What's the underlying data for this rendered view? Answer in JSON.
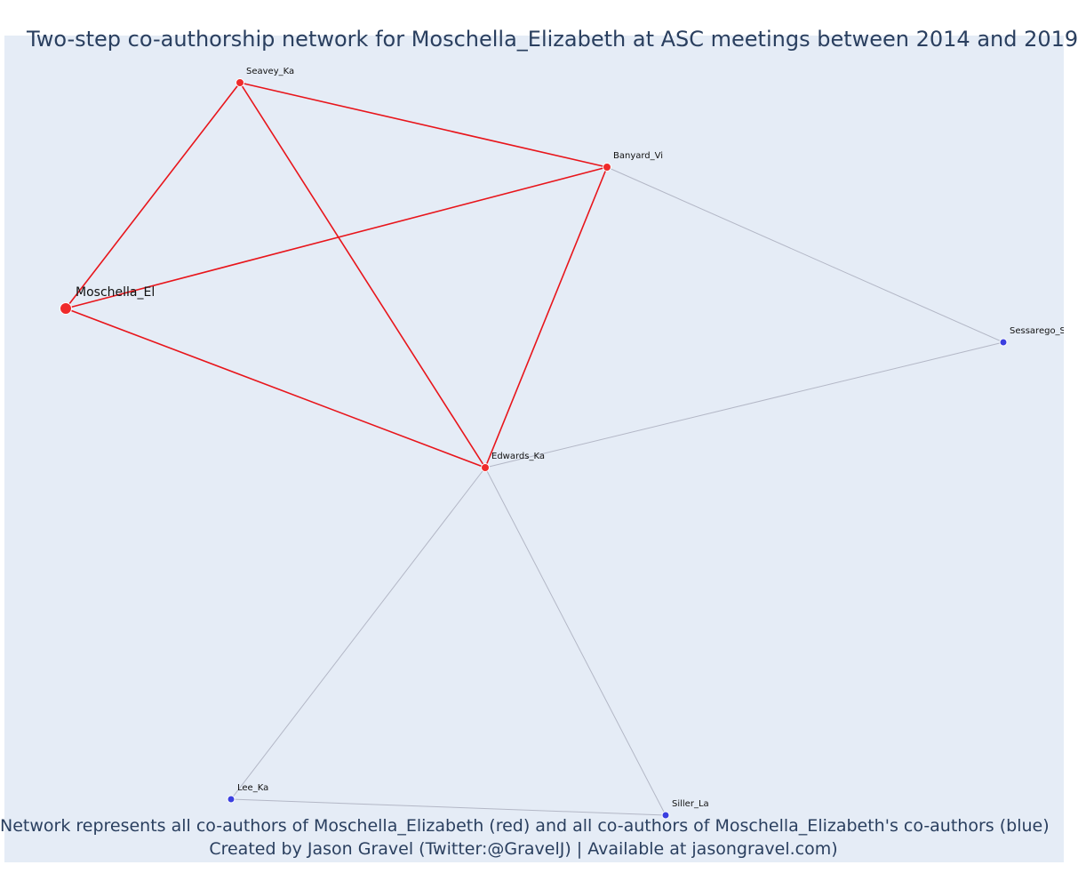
{
  "title": "Two-step co-authorship network for Moschella_Elizabeth at ASC meetings between 2014 and 2019",
  "footnotes": [
    "Network represents all co-authors of Moschella_Elizabeth (red) and all co-authors of Moschella_Elizabeth's co-authors (blue)",
    "Created by Jason Gravel (Twitter:@GravelJ) | Available at jasongravel.com)"
  ],
  "colors": {
    "background": "#e5ecf6",
    "first_step_node": "#ef2b2b",
    "second_step_node": "#3b3fe0",
    "first_step_edge": "#e8151b",
    "second_step_edge": "#b3b7c6",
    "text": "#2a3f5f"
  },
  "nodes": [
    {
      "id": "Moschella_El",
      "label": "Moschella_El",
      "group": "focal"
    },
    {
      "id": "Seavey_Ka",
      "label": "Seavey_Ka",
      "group": "co-author"
    },
    {
      "id": "Banyard_Vi",
      "label": "Banyard_Vi",
      "group": "co-author"
    },
    {
      "id": "Edwards_Ka",
      "label": "Edwards_Ka",
      "group": "co-author"
    },
    {
      "id": "Sessarego_Sa",
      "label": "Sessarego_S",
      "group": "second-step"
    },
    {
      "id": "Lee_Ka",
      "label": "Lee_Ka",
      "group": "second-step"
    },
    {
      "id": "Siller_La",
      "label": "Siller_La",
      "group": "second-step"
    }
  ],
  "edges": [
    {
      "source": "Moschella_El",
      "target": "Seavey_Ka",
      "type": "first-step"
    },
    {
      "source": "Moschella_El",
      "target": "Banyard_Vi",
      "type": "first-step"
    },
    {
      "source": "Moschella_El",
      "target": "Edwards_Ka",
      "type": "first-step"
    },
    {
      "source": "Seavey_Ka",
      "target": "Banyard_Vi",
      "type": "first-step"
    },
    {
      "source": "Seavey_Ka",
      "target": "Edwards_Ka",
      "type": "first-step"
    },
    {
      "source": "Banyard_Vi",
      "target": "Edwards_Ka",
      "type": "first-step"
    },
    {
      "source": "Banyard_Vi",
      "target": "Sessarego_Sa",
      "type": "second-step"
    },
    {
      "source": "Edwards_Ka",
      "target": "Sessarego_Sa",
      "type": "second-step"
    },
    {
      "source": "Edwards_Ka",
      "target": "Lee_Ka",
      "type": "second-step"
    },
    {
      "source": "Edwards_Ka",
      "target": "Siller_La",
      "type": "second-step"
    },
    {
      "source": "Lee_Ka",
      "target": "Siller_La",
      "type": "second-step"
    }
  ]
}
